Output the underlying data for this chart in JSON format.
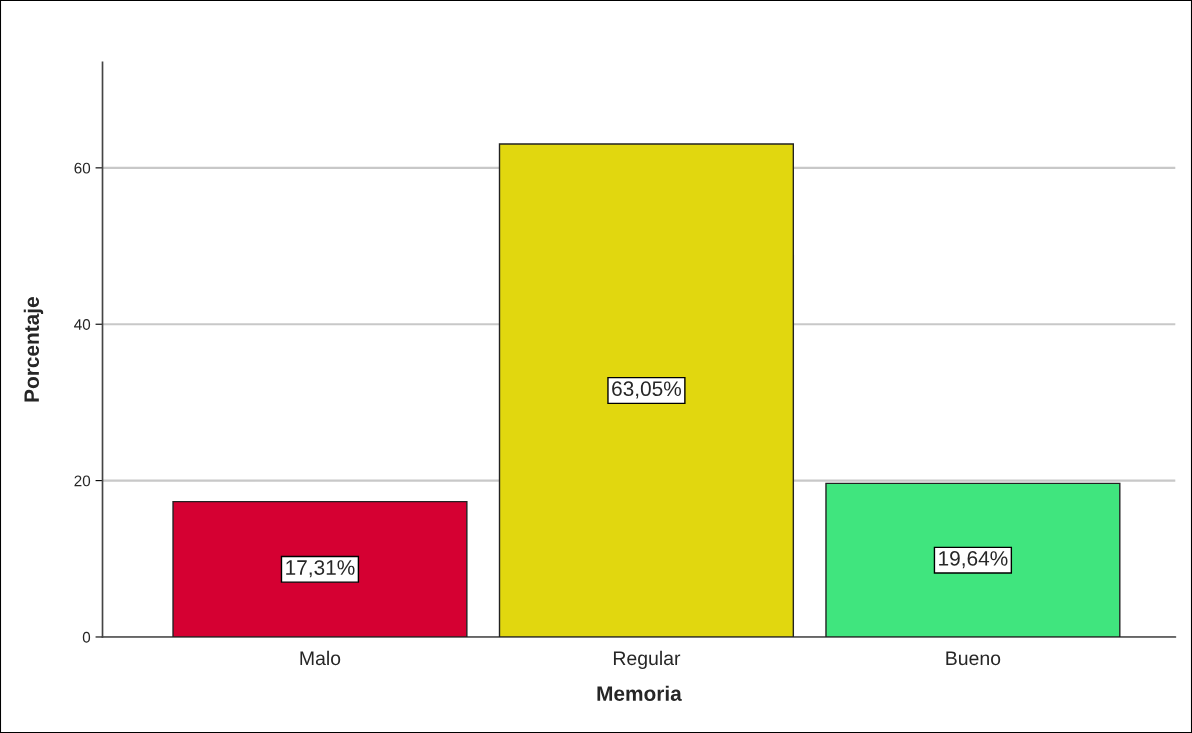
{
  "chart_data": {
    "type": "bar",
    "xlabel": "Memoria",
    "ylabel": "Porcentaje",
    "categories": [
      "Malo",
      "Regular",
      "Bueno"
    ],
    "values": [
      17.31,
      63.05,
      19.64
    ],
    "colors": [
      "#d50032",
      "#e1d70f",
      "#40e57e"
    ],
    "value_labels": [
      "17,31%",
      "63,05%",
      "19,64%"
    ],
    "ylim": [
      0,
      73.5
    ],
    "yticks": [
      0,
      20,
      40,
      60
    ],
    "grid": "y"
  }
}
